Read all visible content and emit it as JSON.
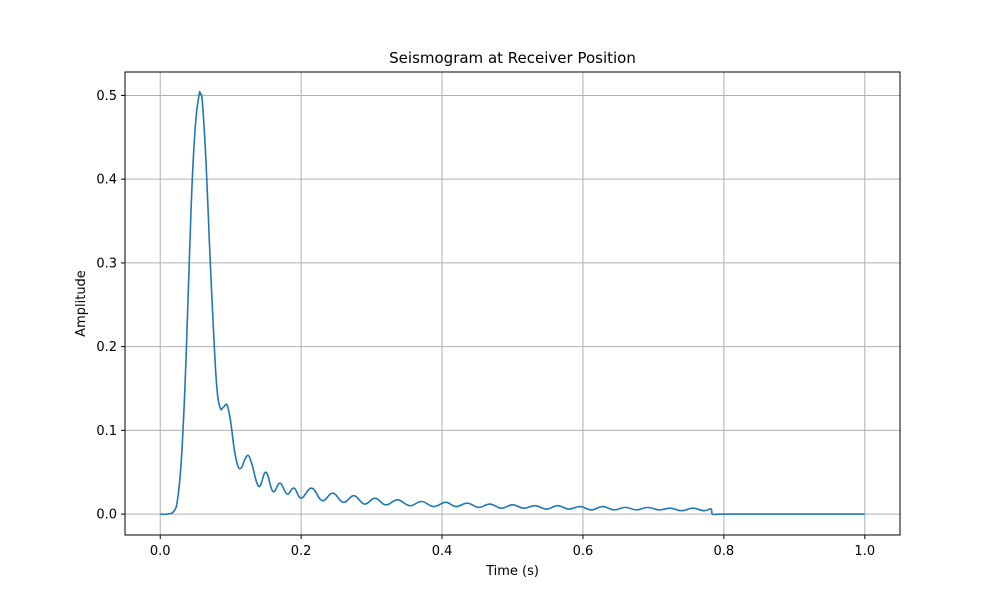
{
  "chart_data": {
    "type": "line",
    "title": "Seismogram at Receiver Position",
    "xlabel": "Time (s)",
    "ylabel": "Amplitude",
    "xlim": [
      -0.05,
      1.05
    ],
    "ylim": [
      -0.025,
      0.528
    ],
    "xticks": [
      0.0,
      0.2,
      0.4,
      0.6,
      0.8,
      1.0
    ],
    "xtick_labels": [
      "0.0",
      "0.2",
      "0.4",
      "0.6",
      "0.8",
      "1.0"
    ],
    "yticks": [
      0.0,
      0.1,
      0.2,
      0.3,
      0.4,
      0.5
    ],
    "ytick_labels": [
      "0.0",
      "0.1",
      "0.2",
      "0.3",
      "0.4",
      "0.5"
    ],
    "grid": true,
    "colors": {
      "line": "#1f77b4",
      "grid": "#b0b0b0"
    },
    "series": [
      {
        "x": [
          0.0,
          0.01,
          0.02,
          0.025,
          0.03,
          0.035,
          0.04,
          0.045,
          0.05,
          0.055,
          0.057,
          0.06,
          0.065,
          0.07,
          0.075,
          0.08,
          0.085,
          0.09,
          0.095,
          0.1,
          0.105,
          0.11,
          0.115,
          0.12,
          0.125,
          0.13,
          0.14,
          0.15,
          0.16,
          0.17,
          0.18,
          0.19,
          0.2,
          0.215,
          0.23,
          0.245,
          0.26,
          0.275,
          0.29,
          0.305,
          0.32,
          0.337,
          0.354,
          0.371,
          0.388,
          0.405,
          0.42,
          0.436,
          0.452,
          0.468,
          0.484,
          0.5,
          0.516,
          0.532,
          0.548,
          0.564,
          0.58,
          0.596,
          0.612,
          0.628,
          0.644,
          0.66,
          0.676,
          0.692,
          0.708,
          0.724,
          0.74,
          0.756,
          0.772,
          0.782,
          0.7835,
          0.8,
          1.0
        ],
        "y": [
          0.0,
          0.0,
          0.004,
          0.02,
          0.065,
          0.15,
          0.27,
          0.39,
          0.465,
          0.5,
          0.502,
          0.49,
          0.42,
          0.32,
          0.23,
          0.155,
          0.127,
          0.128,
          0.13,
          0.11,
          0.078,
          0.058,
          0.055,
          0.065,
          0.07,
          0.06,
          0.033,
          0.05,
          0.027,
          0.037,
          0.024,
          0.031,
          0.019,
          0.031,
          0.016,
          0.025,
          0.014,
          0.022,
          0.012,
          0.019,
          0.011,
          0.017,
          0.01,
          0.015,
          0.009,
          0.014,
          0.009,
          0.013,
          0.008,
          0.012,
          0.007,
          0.011,
          0.007,
          0.01,
          0.006,
          0.01,
          0.006,
          0.009,
          0.005,
          0.009,
          0.005,
          0.008,
          0.005,
          0.008,
          0.005,
          0.007,
          0.004,
          0.007,
          0.004,
          0.006,
          0.0,
          0.0,
          0.0
        ]
      }
    ]
  }
}
